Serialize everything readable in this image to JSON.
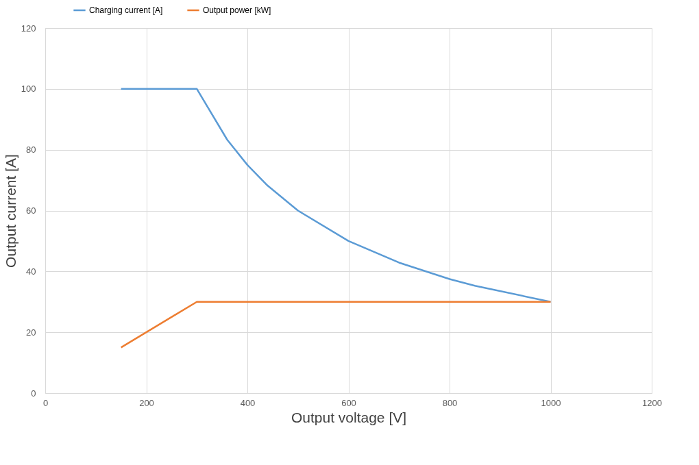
{
  "chart_data": {
    "type": "line",
    "xlabel": "Output voltage [V]",
    "ylabel": "Output current [A]",
    "series": [
      {
        "name": "Charging current [A]",
        "color": "#5b9bd5",
        "x": [
          150,
          300,
          360,
          400,
          440,
          500,
          600,
          700,
          800,
          850,
          1000
        ],
        "values": [
          100,
          100,
          83.3,
          75,
          68.2,
          60,
          50,
          42.9,
          37.5,
          35.3,
          30
        ]
      },
      {
        "name": "Output power [kW]",
        "color": "#ed7d31",
        "x": [
          150,
          300,
          1000
        ],
        "values": [
          15,
          30,
          30
        ]
      }
    ],
    "xlim": [
      0,
      1200
    ],
    "xticks": [
      0,
      200,
      400,
      600,
      800,
      1000,
      1200
    ],
    "ylim": [
      0,
      120
    ],
    "yticks": [
      0,
      20,
      40,
      60,
      80,
      100,
      120
    ],
    "grid": true,
    "legend": "top left",
    "marker": "none",
    "line_style": "solid"
  }
}
